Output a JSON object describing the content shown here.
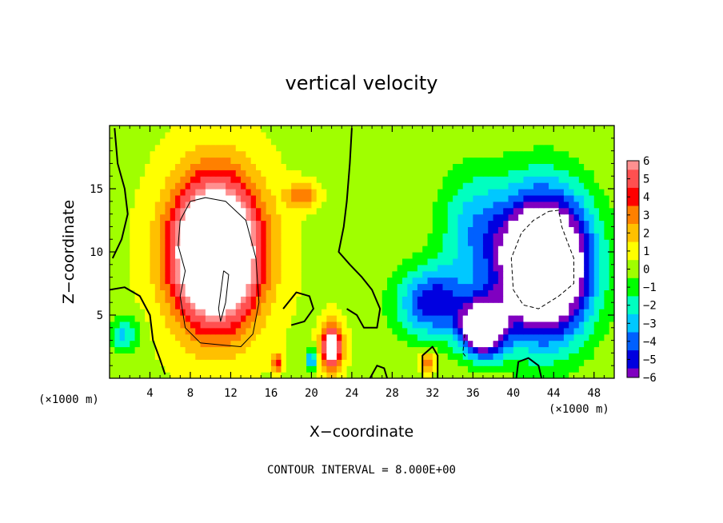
{
  "chart_data": {
    "type": "heatmap",
    "title": "vertical velocity",
    "xlabel": "X−coordinate",
    "ylabel": "Z−coordinate",
    "x_unit": "(×1000 m)",
    "z_unit": "(×1000 m)",
    "xlim": [
      0,
      50
    ],
    "ylim": [
      0,
      20
    ],
    "x_ticks": [
      4,
      8,
      12,
      16,
      20,
      24,
      28,
      32,
      36,
      40,
      44,
      48
    ],
    "x_tick_labels": [
      "4",
      "8",
      "12",
      "16",
      "20",
      "24",
      "28",
      "32",
      "36",
      "40",
      "44",
      "48"
    ],
    "y_ticks": [
      5,
      10,
      15
    ],
    "y_tick_labels": [
      "5",
      "10",
      "15"
    ],
    "footer": "CONTOUR INTERVAL = 8.000E+00",
    "colorbar": {
      "levels": [
        6,
        5,
        4,
        3,
        2,
        1,
        0,
        -1,
        -2,
        -3,
        -4,
        -5,
        -6
      ],
      "labels": [
        "6",
        "5",
        "4",
        "3",
        "2",
        "1",
        "0",
        "−1",
        "−2",
        "−3",
        "−4",
        "−5",
        "−6"
      ],
      "colors": [
        "#ff9090",
        "#ff5050",
        "#ff0000",
        "#ff8000",
        "#ffc000",
        "#ffff00",
        "#a0ff00",
        "#00ff00",
        "#00ffc0",
        "#00c8ff",
        "#0060ff",
        "#0000e0",
        "#8000c0"
      ],
      "saturated_above_color": "#ffffff",
      "saturated_below_color": "#ffffff"
    },
    "features": [
      {
        "kind": "updraft",
        "x": 10.5,
        "z": 10,
        "rx": 4.2,
        "rz": 5.5,
        "peak": 14
      },
      {
        "kind": "updraft",
        "x": 22,
        "z": 2.5,
        "rx": 1.0,
        "rz": 1.8,
        "peak": 8
      },
      {
        "kind": "updraft",
        "x": 19,
        "z": 14.5,
        "rx": 1.5,
        "rz": 1.0,
        "peak": 3
      },
      {
        "kind": "updraft",
        "x": 31.5,
        "z": 1.3,
        "rx": 0.8,
        "rz": 0.8,
        "peak": 3.5
      },
      {
        "kind": "updraft",
        "x": 16.6,
        "z": 1.3,
        "rx": 0.5,
        "rz": 0.8,
        "peak": 4
      },
      {
        "kind": "downdraft",
        "x": 43,
        "z": 9,
        "rx": 4.5,
        "rz": 5.5,
        "peak": -14
      },
      {
        "kind": "downdraft",
        "x": 37,
        "z": 4,
        "rx": 2.2,
        "rz": 2.2,
        "peak": -10
      },
      {
        "kind": "downdraft",
        "x": 32,
        "z": 6,
        "rx": 3.5,
        "rz": 2.8,
        "peak": -5.5
      },
      {
        "kind": "downdraft",
        "x": 36,
        "z": 12,
        "rx": 3.5,
        "rz": 4.5,
        "peak": -3
      },
      {
        "kind": "downdraft",
        "x": 20,
        "z": 1.5,
        "rx": 0.6,
        "rz": 0.8,
        "peak": -4
      },
      {
        "kind": "downdraft",
        "x": 1.5,
        "z": 3.5,
        "rx": 1.5,
        "rz": 1.5,
        "peak": -3
      }
    ],
    "contour_lines": [
      {
        "style": "thick",
        "points": [
          [
            0.5,
            19.8
          ],
          [
            0.8,
            17
          ],
          [
            1.5,
            15
          ],
          [
            1.8,
            13
          ],
          [
            1.2,
            11
          ],
          [
            0.3,
            9.5
          ]
        ]
      },
      {
        "style": "thick",
        "points": [
          [
            0,
            7
          ],
          [
            1.5,
            7.2
          ],
          [
            3,
            6.5
          ],
          [
            4,
            5
          ],
          [
            4.3,
            3
          ],
          [
            5,
            1.5
          ],
          [
            5.5,
            0.3
          ]
        ]
      },
      {
        "style": "thin",
        "points": [
          [
            8,
            14
          ],
          [
            7,
            12.5
          ],
          [
            6.8,
            10.5
          ],
          [
            7.5,
            8.5
          ],
          [
            7,
            6.5
          ],
          [
            7.5,
            4
          ],
          [
            9,
            2.8
          ],
          [
            11.5,
            2.6
          ],
          [
            13,
            2.5
          ],
          [
            14.2,
            3.5
          ],
          [
            14.8,
            6
          ],
          [
            14.5,
            9.5
          ],
          [
            13.5,
            12.5
          ],
          [
            11.5,
            14
          ],
          [
            9.5,
            14.3
          ],
          [
            8,
            14
          ]
        ]
      },
      {
        "style": "thin",
        "points": [
          [
            11.3,
            8.5
          ],
          [
            11.8,
            8.2
          ],
          [
            11.5,
            6
          ],
          [
            11,
            4.5
          ],
          [
            10.8,
            5.5
          ],
          [
            11.3,
            8.5
          ]
        ]
      },
      {
        "style": "thick",
        "points": [
          [
            24,
            19.8
          ],
          [
            23.8,
            17
          ],
          [
            23.5,
            14
          ],
          [
            23.2,
            12
          ],
          [
            22.7,
            10
          ],
          [
            23.8,
            9
          ],
          [
            25,
            8
          ],
          [
            26,
            7
          ],
          [
            26.8,
            5.5
          ],
          [
            26.5,
            4
          ],
          [
            25.2,
            4
          ],
          [
            24.5,
            5
          ],
          [
            23.5,
            5.5
          ]
        ]
      },
      {
        "style": "thick",
        "points": [
          [
            17.2,
            5.5
          ],
          [
            18.5,
            6.8
          ],
          [
            19.8,
            6.5
          ],
          [
            20.2,
            5.5
          ],
          [
            19.3,
            4.5
          ],
          [
            18,
            4.2
          ]
        ]
      },
      {
        "style": "thick",
        "points": [
          [
            25.8,
            0
          ],
          [
            26.5,
            1
          ],
          [
            27.2,
            0.8
          ],
          [
            27.5,
            0
          ]
        ]
      },
      {
        "style": "thick",
        "points": [
          [
            31,
            0
          ],
          [
            31,
            1.8
          ],
          [
            32,
            2.5
          ],
          [
            32.5,
            1.8
          ],
          [
            32.5,
            0
          ]
        ]
      },
      {
        "style": "thick",
        "points": [
          [
            40.3,
            0
          ],
          [
            40.5,
            1.3
          ],
          [
            41.5,
            1.6
          ],
          [
            42.5,
            1
          ],
          [
            42.8,
            0
          ]
        ]
      },
      {
        "style": "dashed",
        "points": [
          [
            43.5,
            13.2
          ],
          [
            44.5,
            13.3
          ],
          [
            44.8,
            12
          ],
          [
            45.5,
            10.5
          ],
          [
            46,
            9.5
          ],
          [
            46,
            7.5
          ],
          [
            44.5,
            6.5
          ],
          [
            42.5,
            5.5
          ],
          [
            41,
            5.8
          ],
          [
            40,
            7
          ],
          [
            39.8,
            9.5
          ],
          [
            40.8,
            11.5
          ],
          [
            42,
            12.5
          ],
          [
            43.5,
            13.2
          ]
        ]
      },
      {
        "style": "dashed",
        "points": [
          [
            35.2,
            3.5
          ],
          [
            35,
            2
          ],
          [
            35.3,
            1.7
          ]
        ]
      }
    ]
  }
}
